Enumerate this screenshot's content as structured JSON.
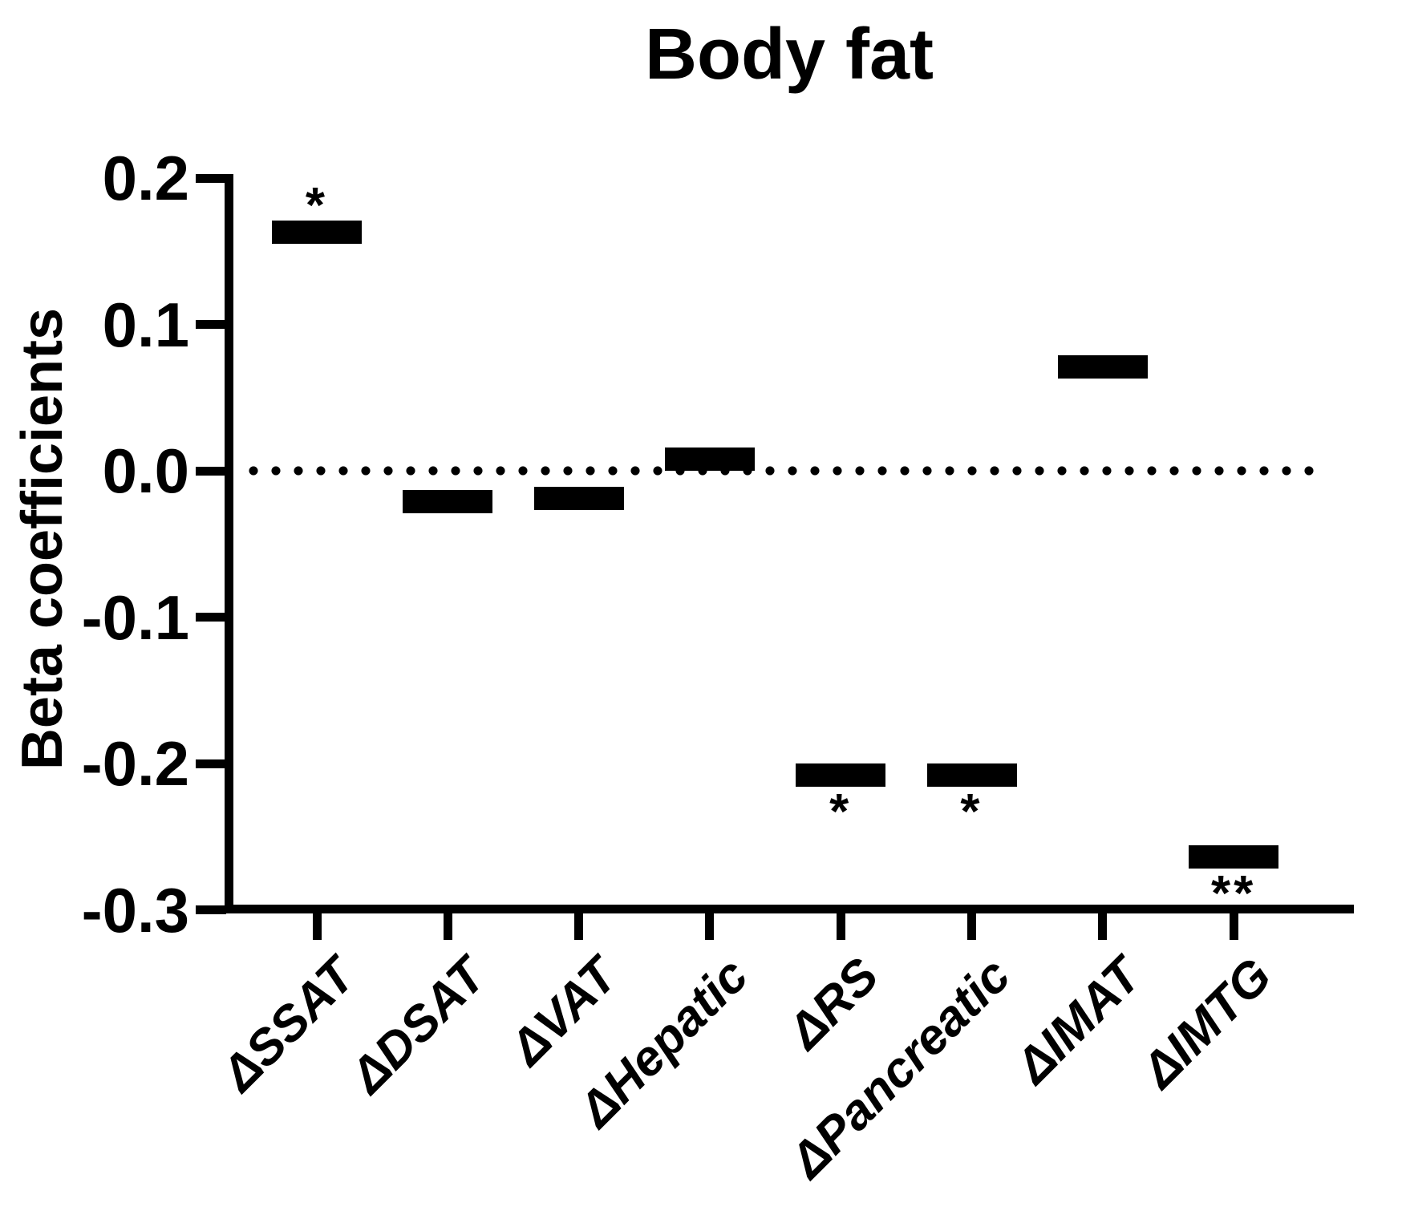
{
  "figure": {
    "title": "Body fat",
    "y_axis_label": "Beta coefficients"
  },
  "chart_data": {
    "type": "bar",
    "subtype": "floating-marker-bars",
    "title": "Body fat",
    "xlabel": "",
    "ylabel": "Beta coefficients",
    "ylim": [
      -0.3,
      0.2
    ],
    "ytick_values": [
      0.2,
      0.1,
      0.0,
      -0.1,
      -0.2,
      -0.3
    ],
    "ytick_labels": [
      "0.2",
      "0.1",
      "0.0",
      "-0.1",
      "-0.2",
      "-0.3"
    ],
    "zero_reference_line": "dotted",
    "grid": false,
    "legend": "none",
    "categories": [
      "ΔSSAT",
      "ΔDSAT",
      "ΔVAT",
      "ΔHepatic",
      "ΔRS",
      "ΔPancreatic",
      "ΔIMAT",
      "ΔIMTG"
    ],
    "values": [
      0.163,
      -0.021,
      -0.019,
      0.008,
      -0.208,
      -0.208,
      0.071,
      -0.264
    ],
    "significance": [
      "*",
      "",
      "",
      "",
      "*",
      "*",
      "",
      "**"
    ],
    "colors": {
      "bar": "#000000",
      "axis": "#000000",
      "background": "#ffffff"
    }
  }
}
